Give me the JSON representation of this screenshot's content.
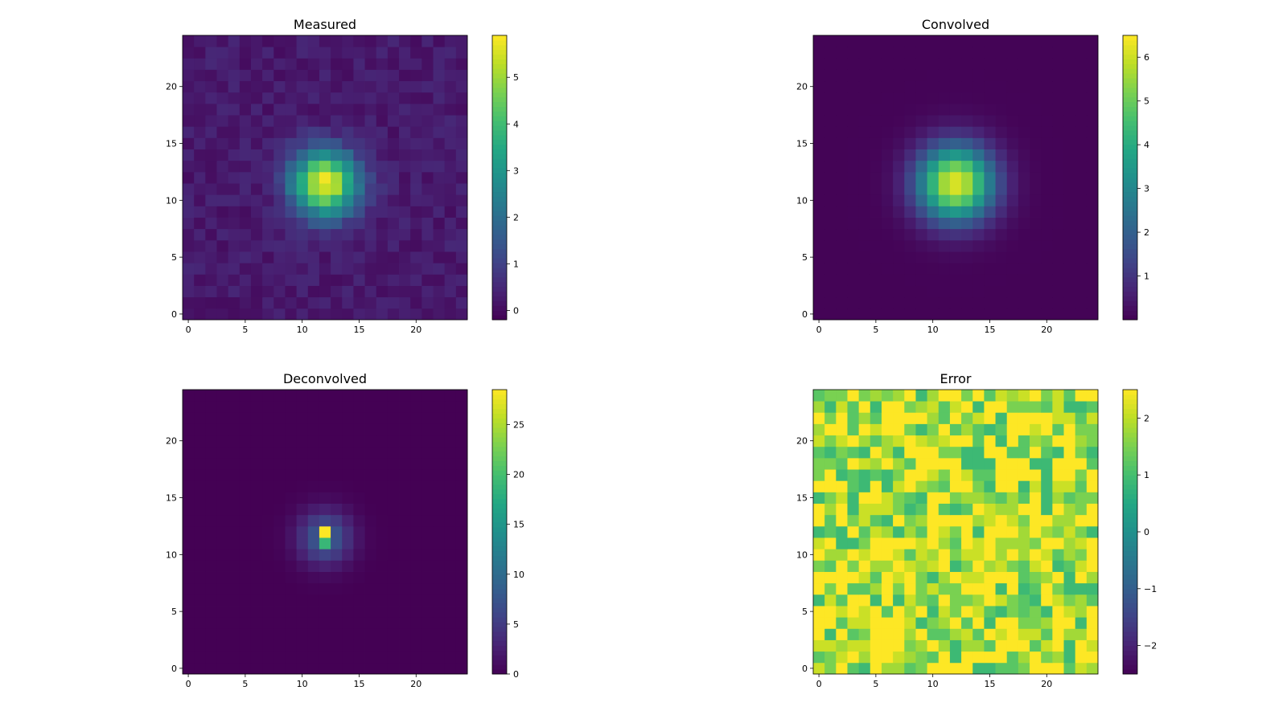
{
  "chart_data": [
    {
      "type": "heatmap",
      "title": "Measured",
      "grid_size": 25,
      "xlim": [
        -0.5,
        24.5
      ],
      "ylim": [
        -0.5,
        24.5
      ],
      "x_ticks": [
        0,
        5,
        10,
        15,
        20
      ],
      "y_ticks": [
        0,
        5,
        10,
        15,
        20
      ],
      "colorbar": {
        "min": -0.2,
        "max": 5.9,
        "ticks": [
          0,
          1,
          2,
          3,
          4,
          5
        ]
      },
      "model": {
        "kind": "gaussian",
        "cx": 12,
        "cy": 11.5,
        "peak": 5.5,
        "sigma": 2.0,
        "baseline": 0.25,
        "noise": 0.25
      },
      "grid": false,
      "legend": "none"
    },
    {
      "type": "heatmap",
      "title": "Convolved",
      "grid_size": 25,
      "xlim": [
        -0.5,
        24.5
      ],
      "ylim": [
        -0.5,
        24.5
      ],
      "x_ticks": [
        0,
        5,
        10,
        15,
        20
      ],
      "y_ticks": [
        0,
        5,
        10,
        15,
        20
      ],
      "colorbar": {
        "min": 0.0,
        "max": 6.5,
        "ticks": [
          1,
          2,
          3,
          4,
          5,
          6
        ]
      },
      "model": {
        "kind": "gaussian",
        "cx": 12,
        "cy": 11.5,
        "peak": 6.2,
        "sigma": 2.3,
        "baseline": 0.05,
        "noise": 0.0
      },
      "grid": false,
      "legend": "none"
    },
    {
      "type": "heatmap",
      "title": "Deconvolved",
      "grid_size": 25,
      "xlim": [
        -0.5,
        24.5
      ],
      "ylim": [
        -0.5,
        24.5
      ],
      "x_ticks": [
        0,
        5,
        10,
        15,
        20
      ],
      "y_ticks": [
        0,
        5,
        10,
        15,
        20
      ],
      "colorbar": {
        "min": 0.0,
        "max": 28.5,
        "ticks": [
          0,
          5,
          10,
          15,
          20,
          25
        ]
      },
      "model": {
        "kind": "peaked",
        "cx": 12,
        "cy": 11.5,
        "peak": 28.5,
        "secondary": 19.0,
        "sigma": 1.6,
        "halo": 9.0,
        "baseline": 0.0,
        "noise": 0.0
      },
      "grid": false,
      "legend": "none"
    },
    {
      "type": "heatmap",
      "title": "Error",
      "grid_size": 25,
      "xlim": [
        -0.5,
        24.5
      ],
      "ylim": [
        -0.5,
        24.5
      ],
      "x_ticks": [
        0,
        5,
        10,
        15,
        20
      ],
      "y_ticks": [
        0,
        5,
        10,
        15,
        20
      ],
      "colorbar": {
        "min": -2.5,
        "max": 2.5,
        "ticks": [
          -2,
          -1,
          0,
          1,
          2
        ],
        "tick_labels": [
          "−2",
          "−1",
          "0",
          "1",
          "2"
        ]
      },
      "model": {
        "kind": "noise_high",
        "levels": [
          2.5,
          2.5,
          2.5,
          2.1,
          1.8,
          1.5,
          1.2,
          0.9
        ]
      },
      "grid": false,
      "legend": "none"
    }
  ]
}
